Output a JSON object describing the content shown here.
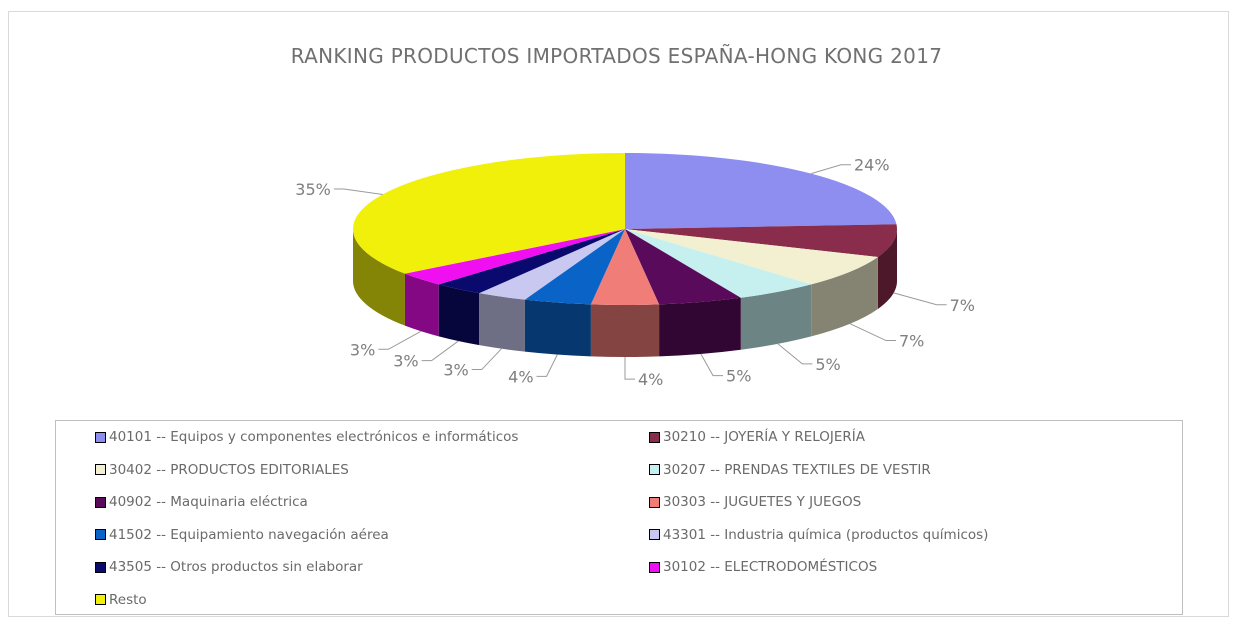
{
  "chart_data": {
    "type": "pie",
    "title": "RANKING PRODUCTOS IMPORTADOS ESPAÑA-HONG KONG 2017",
    "legend_position": "bottom",
    "slices": [
      {
        "label": "40101 -- Equipos y componentes electrónicos e informáticos",
        "value": 24,
        "display": "24%",
        "color": "#8e8ef0"
      },
      {
        "label": "30210 -- JOYERÍA Y RELOJERÍA",
        "value": 7,
        "display": "7%",
        "color": "#8a2c4c"
      },
      {
        "label": "30402 -- PRODUCTOS EDITORIALES",
        "value": 7,
        "display": "7%",
        "color": "#f2f0d0"
      },
      {
        "label": "30207 -- PRENDAS TEXTILES DE VESTIR",
        "value": 5,
        "display": "5%",
        "color": "#c6f0f0"
      },
      {
        "label": "40902 -- Maquinaria eléctrica",
        "value": 5,
        "display": "5%",
        "color": "#5a0a5a"
      },
      {
        "label": "30303 -- JUGUETES Y JUEGOS",
        "value": 4,
        "display": "4%",
        "color": "#f07d78"
      },
      {
        "label": "41502 -- Equipamiento navegación aérea",
        "value": 4,
        "display": "4%",
        "color": "#0a64c8"
      },
      {
        "label": "43301 -- Industria química (productos químicos)",
        "value": 3,
        "display": "3%",
        "color": "#c8c8f0"
      },
      {
        "label": "43505 -- Otros productos sin elaborar",
        "value": 3,
        "display": "3%",
        "color": "#0a0a6e"
      },
      {
        "label": "30102 -- ELECTRODOMÉSTICOS",
        "value": 3,
        "display": "3%",
        "color": "#f00ff0"
      },
      {
        "label": "Resto",
        "value": 35,
        "display": "35%",
        "color": "#f0f00a"
      }
    ]
  }
}
